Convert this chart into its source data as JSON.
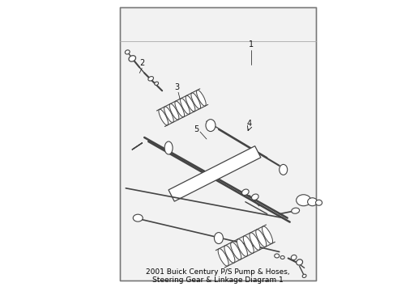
{
  "bg_color": "#ffffff",
  "panel_bg": "#f2f2f2",
  "panel_edge": "#888888",
  "part_color": "#444444",
  "label_color": "#111111",
  "title": "2001 Buick Century P/S Pump & Hoses,\nSteering Gear & Linkage Diagram 1",
  "title_fontsize": 6.5,
  "figsize": [
    4.9,
    3.6
  ],
  "dpi": 100
}
